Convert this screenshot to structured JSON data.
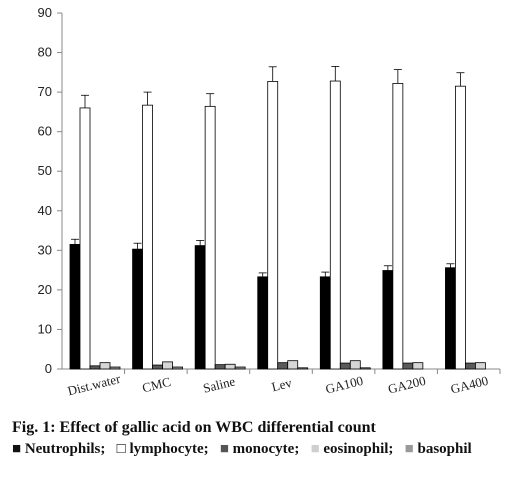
{
  "chart_data": {
    "type": "bar",
    "categories": [
      "Dist.water",
      "CMC",
      "Saline",
      "Lev",
      "GA100",
      "GA200",
      "GA400"
    ],
    "ylim": [
      0,
      90
    ],
    "yticks": [
      0,
      10,
      20,
      30,
      40,
      50,
      60,
      70,
      80,
      90
    ],
    "series": [
      {
        "name": "Neutrophils",
        "color": "#000000",
        "values": [
          31.5,
          30.3,
          31.2,
          23.3,
          23.3,
          24.9,
          25.6
        ],
        "errors": [
          1.3,
          1.5,
          1.3,
          1.0,
          1.2,
          1.2,
          1.0
        ]
      },
      {
        "name": "lymphocyte",
        "color": "#ffffff",
        "values": [
          66.0,
          66.7,
          66.4,
          72.7,
          72.8,
          72.2,
          71.5
        ],
        "errors": [
          3.2,
          3.3,
          3.2,
          3.7,
          3.7,
          3.5,
          3.4
        ]
      },
      {
        "name": "monocyte",
        "color": "#5a5a5a",
        "values": [
          0.8,
          1.0,
          1.1,
          1.6,
          1.5,
          1.5,
          1.5
        ],
        "errors": [
          0,
          0,
          0,
          0,
          0,
          0,
          0
        ]
      },
      {
        "name": "eosinophil",
        "color": "#d6d6d6",
        "values": [
          1.6,
          1.8,
          1.2,
          2.1,
          2.1,
          1.6,
          1.6
        ],
        "errors": [
          0,
          0,
          0,
          0,
          0,
          0,
          0
        ]
      },
      {
        "name": "basophil",
        "color": "#9a9a9a",
        "values": [
          0.5,
          0.5,
          0.5,
          0.3,
          0.3,
          0,
          0
        ],
        "errors": [
          0,
          0,
          0,
          0,
          0,
          0,
          0
        ]
      }
    ],
    "legend_placement": "bottom",
    "grid": false
  },
  "caption": {
    "title": "Fig. 1: Effect of gallic acid on WBC differential count",
    "legend": [
      {
        "marker": "■",
        "label": "Neutrophils;"
      },
      {
        "marker": "□",
        "label": "lymphocyte;"
      },
      {
        "marker": "■",
        "label": "monocyte;"
      },
      {
        "marker": "■",
        "label": "eosinophil;"
      },
      {
        "marker": "■",
        "label": "basophil"
      }
    ]
  }
}
